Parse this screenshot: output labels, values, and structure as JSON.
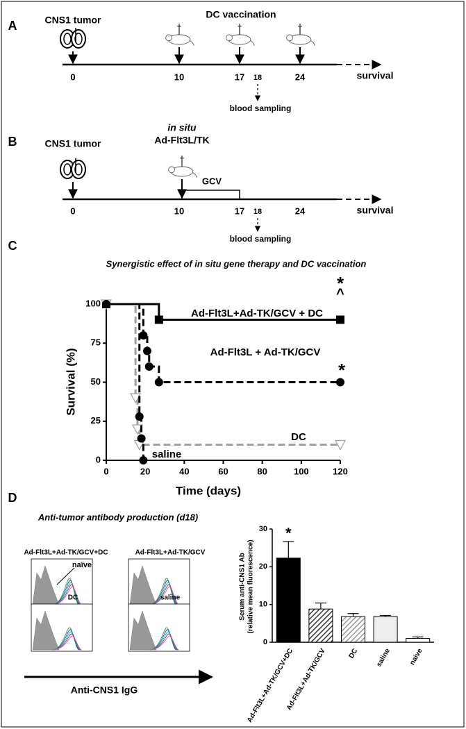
{
  "panel_labels": [
    "A",
    "B",
    "C",
    "D"
  ],
  "timeline_a": {
    "title": "CNS1 tumor",
    "vaccination": "DC vaccination",
    "ticks": [
      "0",
      "10",
      "17",
      "18",
      "24"
    ],
    "end": "survival",
    "sampling": "blood sampling"
  },
  "timeline_b": {
    "title": "CNS1 tumor",
    "treatment_italic": "in situ",
    "treatment": "Ad-Flt3L/TK",
    "gcv": "GCV",
    "ticks": [
      "0",
      "10",
      "17",
      "18",
      "24"
    ],
    "end": "survival",
    "sampling": "blood sampling"
  },
  "chart_data": [
    {
      "type": "line",
      "step": true,
      "title": "Synergistic effect of in situ gene therapy and DC vaccination",
      "x_label": "Time (days)",
      "y_label": "Survival (%)",
      "xlim": [
        0,
        120
      ],
      "xticks": [
        0,
        20,
        40,
        60,
        80,
        100,
        120
      ],
      "ylim": [
        0,
        100
      ],
      "yticks": [
        0,
        25,
        50,
        75,
        100
      ],
      "series": [
        {
          "name": "Ad-Flt3L+Ad-TK/GCV + DC",
          "color": "#000000",
          "dash": "solid",
          "marker": "square",
          "x": [
            0,
            27,
            120
          ],
          "values": [
            100,
            90,
            90
          ]
        },
        {
          "name": "Ad-Flt3L + Ad-TK/GCV",
          "color": "#000000",
          "dash": "dashed",
          "marker": "circle",
          "x": [
            0,
            19,
            21,
            22,
            27,
            120
          ],
          "values": [
            100,
            80,
            70,
            60,
            50,
            50
          ]
        },
        {
          "name": "DC",
          "color": "#a0a0a0",
          "dash": "dashed",
          "marker": "triangle",
          "x": [
            0,
            15,
            16,
            17,
            120
          ],
          "values": [
            100,
            40,
            20,
            10,
            10
          ]
        },
        {
          "name": "saline",
          "color": "#000000",
          "dash": "dashed",
          "marker": "circle",
          "x": [
            0,
            17,
            18,
            19
          ],
          "values": [
            100,
            28,
            14,
            0
          ]
        }
      ],
      "annotations": [
        "*",
        "^",
        "*"
      ]
    },
    {
      "type": "bar",
      "y_label": [
        "Serum anti-CNS1 Ab",
        "(relative mean fluorescence)"
      ],
      "categories": [
        "Ad-Flt3L+Ad-TK/GCV+DC",
        "Ad-Flt3L+Ad-TK/GCV",
        "DC",
        "saline",
        "naive"
      ],
      "values": [
        22.3,
        8.8,
        6.8,
        6.8,
        1.0
      ],
      "errors": [
        4.4,
        1.6,
        0.8,
        0.3,
        0.4
      ],
      "colors": [
        "#000000",
        "#333333",
        "#999999",
        "#eeeeee",
        "#ffffff"
      ],
      "hatch": [
        false,
        true,
        true,
        false,
        false
      ],
      "ylim": [
        0,
        30
      ],
      "yticks": [
        0,
        10,
        20,
        30
      ],
      "annotations": [
        "*"
      ]
    }
  ],
  "histograms": {
    "title": "Anti-tumor antibody production (d18)",
    "panels": [
      "Ad-Flt3L+Ad-TK/GCV+DC",
      "Ad-Flt3L+Ad-TK/GCV",
      "DC",
      "saline"
    ],
    "naive_label": "naïve",
    "x_label": "Anti-CNS1 IgG"
  }
}
